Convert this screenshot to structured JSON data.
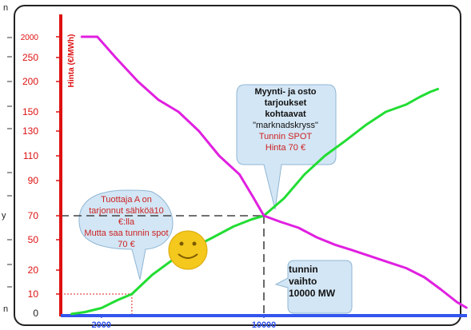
{
  "chart_data": {
    "type": "line",
    "ylabel": "Hinta (€/MWh)",
    "y_ticks": [
      "2000",
      "250",
      "200",
      "150",
      "130",
      "110",
      "90",
      "70",
      "50",
      "20",
      "10",
      "0"
    ],
    "x_ticks": [
      "2000",
      "10000"
    ],
    "series": [
      {
        "role": "supply",
        "color": "#22dd33",
        "points": [
          [
            500,
            0
          ],
          [
            1200,
            1
          ],
          [
            2000,
            3
          ],
          [
            2800,
            7
          ],
          [
            3500,
            10
          ],
          [
            4500,
            18
          ],
          [
            5500,
            30
          ],
          [
            6500,
            42
          ],
          [
            7500,
            52
          ],
          [
            8500,
            61
          ],
          [
            9400,
            67
          ],
          [
            10000,
            70
          ],
          [
            11000,
            80
          ],
          [
            12000,
            95
          ],
          [
            13000,
            110
          ],
          [
            14000,
            122
          ],
          [
            15000,
            136
          ],
          [
            16000,
            150
          ],
          [
            17000,
            162
          ],
          [
            17700,
            175
          ],
          [
            18200,
            183
          ],
          [
            18600,
            188
          ]
        ]
      },
      {
        "role": "demand",
        "color": "#e020e0",
        "points": [
          [
            1000,
            2000
          ],
          [
            1800,
            2000
          ],
          [
            2700,
            250
          ],
          [
            3800,
            200
          ],
          [
            4800,
            170
          ],
          [
            5800,
            150
          ],
          [
            6800,
            130
          ],
          [
            7800,
            110
          ],
          [
            8800,
            95
          ],
          [
            9500,
            80
          ],
          [
            10000,
            70
          ],
          [
            10800,
            65
          ],
          [
            11700,
            60
          ],
          [
            12600,
            52
          ],
          [
            13500,
            45
          ],
          [
            14300,
            40
          ],
          [
            15200,
            34
          ],
          [
            16100,
            28
          ],
          [
            17000,
            22
          ],
          [
            17900,
            17
          ],
          [
            18700,
            12
          ],
          [
            19500,
            6
          ],
          [
            20000,
            3
          ]
        ]
      }
    ],
    "equilibrium": {
      "x": 10000,
      "y": 70
    },
    "producer_a": {
      "x": 3500,
      "y": 10
    }
  },
  "bubbles": {
    "market": [
      "Myynti- ja osto",
      "tarjoukset",
      "kohtaavat",
      "\"marknadskryss\"",
      "Tunnin SPOT",
      "Hinta 70 €"
    ],
    "producer": [
      "Tuottaja A on",
      "tarjonnut sähköä10 €:lla",
      "Mutta saa tunnin spot",
      "70 €"
    ],
    "volume": [
      "tunnin",
      "vaihto",
      "10000 MW"
    ]
  },
  "edge_text": [
    "n",
    "y",
    "n"
  ],
  "colors": {
    "y_axis": "#dd1111",
    "x_axis": "#3355ee",
    "supply": "#22dd33",
    "demand": "#e020e0",
    "bubble_fill": "#d3e6f5",
    "smiley": "#f4c81c"
  }
}
